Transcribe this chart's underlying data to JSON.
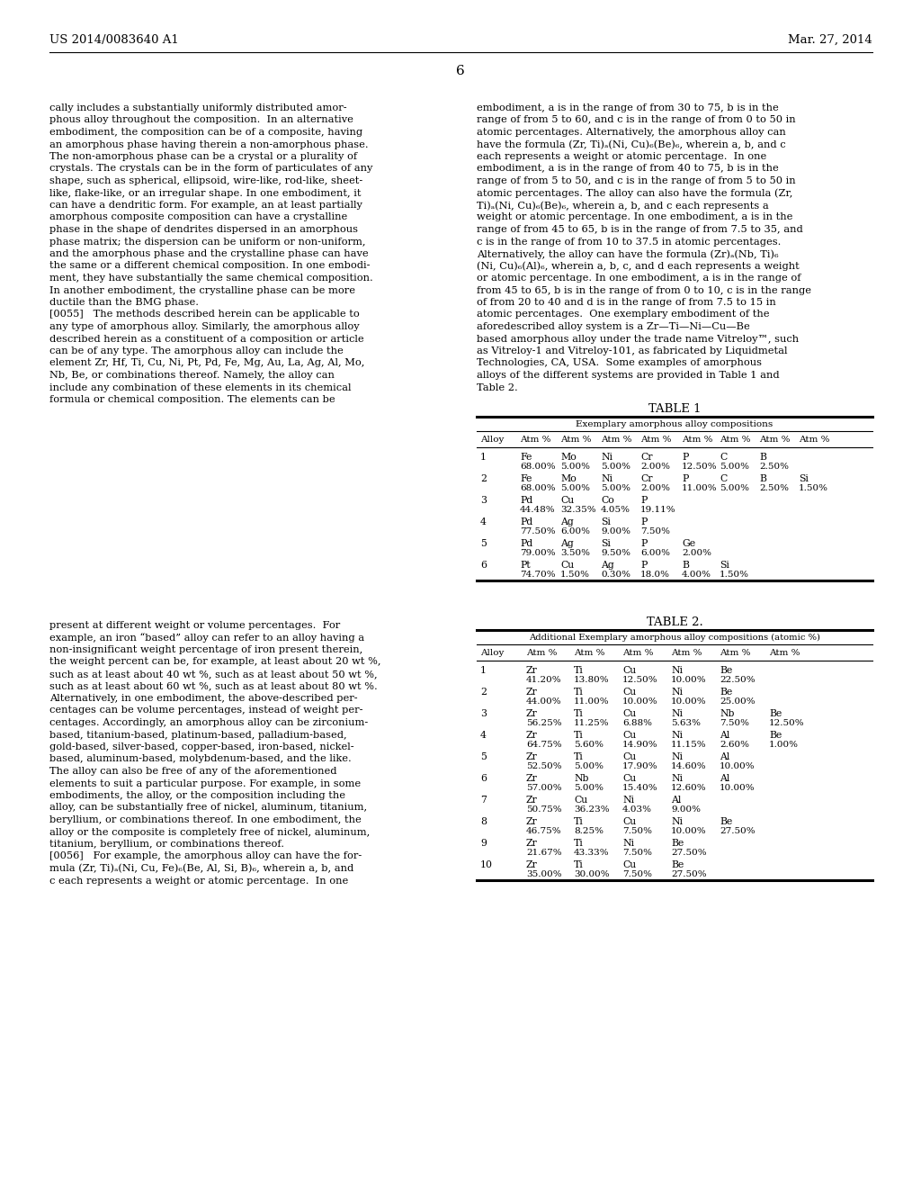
{
  "page_header_left": "US 2014/0083640 A1",
  "page_header_right": "Mar. 27, 2014",
  "page_number": "6",
  "left_col_text": [
    "cally includes a substantially uniformly distributed amor-",
    "phous alloy throughout the composition.  In an alternative",
    "embodiment, the composition can be of a composite, having",
    "an amorphous phase having therein a non-amorphous phase.",
    "The non-amorphous phase can be a crystal or a plurality of",
    "crystals. The crystals can be in the form of particulates of any",
    "shape, such as spherical, ellipsoid, wire-like, rod-like, sheet-",
    "like, flake-like, or an irregular shape. In one embodiment, it",
    "can have a dendritic form. For example, an at least partially",
    "amorphous composite composition can have a crystalline",
    "phase in the shape of dendrites dispersed in an amorphous",
    "phase matrix; the dispersion can be uniform or non-uniform,",
    "and the amorphous phase and the crystalline phase can have",
    "the same or a different chemical composition. In one embodi-",
    "ment, they have substantially the same chemical composition.",
    "In another embodiment, the crystalline phase can be more",
    "ductile than the BMG phase.",
    "[0055]   The methods described herein can be applicable to",
    "any type of amorphous alloy. Similarly, the amorphous alloy",
    "described herein as a constituent of a composition or article",
    "can be of any type. The amorphous alloy can include the",
    "element Zr, Hf, Ti, Cu, Ni, Pt, Pd, Fe, Mg, Au, La, Ag, Al, Mo,",
    "Nb, Be, or combinations thereof. Namely, the alloy can",
    "include any combination of these elements in its chemical",
    "formula or chemical composition. The elements can be"
  ],
  "right_col_text_top": [
    "embodiment, a is in the range of from 30 to 75, b is in the",
    "range of from 5 to 60, and c is in the range of from 0 to 50 in",
    "atomic percentages. Alternatively, the amorphous alloy can",
    "have the formula (Zr, Ti)ₐ(Ni, Cu)₆(Be)₆, wherein a, b, and c",
    "each represents a weight or atomic percentage.  In one",
    "embodiment, a is in the range of from 40 to 75, b is in the",
    "range of from 5 to 50, and c is in the range of from 5 to 50 in",
    "atomic percentages. The alloy can also have the formula (Zr,",
    "Ti)ₐ(Ni, Cu)₆(Be)₆, wherein a, b, and c each represents a",
    "weight or atomic percentage. In one embodiment, a is in the",
    "range of from 45 to 65, b is in the range of from 7.5 to 35, and",
    "c is in the range of from 10 to 37.5 in atomic percentages.",
    "Alternatively, the alloy can have the formula (Zr)ₐ(Nb, Ti)₆",
    "(Ni, Cu)₆(Al)₆, wherein a, b, c, and d each represents a weight",
    "or atomic percentage. In one embodiment, a is in the range of",
    "from 45 to 65, b is in the range of from 0 to 10, c is in the range",
    "of from 20 to 40 and d is in the range of from 7.5 to 15 in",
    "atomic percentages.  One exemplary embodiment of the",
    "aforedescribed alloy system is a Zr—Ti—Ni—Cu—Be",
    "based amorphous alloy under the trade name Vitreloy™, such",
    "as Vitreloy-1 and Vitreloy-101, as fabricated by Liquidmetal",
    "Technologies, CA, USA.  Some examples of amorphous",
    "alloys of the different systems are provided in Table 1 and",
    "Table 2."
  ],
  "table1_title": "TABLE 1",
  "table1_subtitle": "Exemplary amorphous alloy compositions",
  "table1_headers": [
    "Alloy",
    "Atm %",
    "Atm %",
    "Atm %",
    "Atm %",
    "Atm %",
    "Atm %",
    "Atm %",
    "Atm %"
  ],
  "left_col_text2": [
    "present at different weight or volume percentages.  For",
    "example, an iron “based” alloy can refer to an alloy having a",
    "non-insignificant weight percentage of iron present therein,",
    "the weight percent can be, for example, at least about 20 wt %,",
    "such as at least about 40 wt %, such as at least about 50 wt %,",
    "such as at least about 60 wt %, such as at least about 80 wt %.",
    "Alternatively, in one embodiment, the above-described per-",
    "centages can be volume percentages, instead of weight per-",
    "centages. Accordingly, an amorphous alloy can be zirconium-",
    "based, titanium-based, platinum-based, palladium-based,",
    "gold-based, silver-based, copper-based, iron-based, nickel-",
    "based, aluminum-based, molybdenum-based, and the like.",
    "The alloy can also be free of any of the aforementioned",
    "elements to suit a particular purpose. For example, in some",
    "embodiments, the alloy, or the composition including the",
    "alloy, can be substantially free of nickel, aluminum, titanium,",
    "beryllium, or combinations thereof. In one embodiment, the",
    "alloy or the composite is completely free of nickel, aluminum,",
    "titanium, beryllium, or combinations thereof.",
    "[0056]   For example, the amorphous alloy can have the for-",
    "mula (Zr, Ti)ₐ(Ni, Cu, Fe)₆(Be, Al, Si, B)₆, wherein a, b, and",
    "c each represents a weight or atomic percentage.  In one"
  ],
  "table2_title": "TABLE 2.",
  "table2_subtitle": "Additional Exemplary amorphous alloy compositions (atomic %)"
}
